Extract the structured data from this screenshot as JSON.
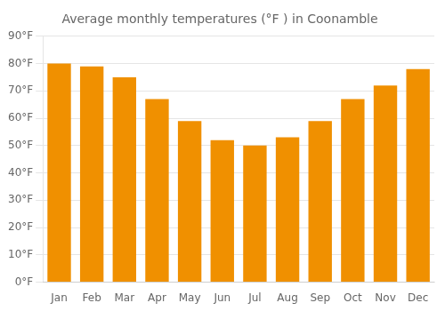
{
  "chart_data": {
    "type": "bar",
    "title": "Average monthly temperatures (°F ) in Coonamble",
    "categories": [
      "Jan",
      "Feb",
      "Mar",
      "Apr",
      "May",
      "Jun",
      "Jul",
      "Aug",
      "Sep",
      "Oct",
      "Nov",
      "Dec"
    ],
    "values": [
      80,
      79,
      75,
      67,
      59,
      52,
      50,
      53,
      59,
      67,
      72,
      78
    ],
    "color": "#F09000",
    "ylim": [
      0,
      90
    ],
    "yticks": [
      {
        "value": 0,
        "label": "0°F"
      },
      {
        "value": 10,
        "label": "10°F"
      },
      {
        "value": 20,
        "label": "20°F"
      },
      {
        "value": 30,
        "label": "30°F"
      },
      {
        "value": 40,
        "label": "40°F"
      },
      {
        "value": 50,
        "label": "50°F"
      },
      {
        "value": 60,
        "label": "60°F"
      },
      {
        "value": 70,
        "label": "70°F"
      },
      {
        "value": 80,
        "label": "80°F"
      },
      {
        "value": 90,
        "label": "90°F"
      }
    ],
    "grid": true
  }
}
